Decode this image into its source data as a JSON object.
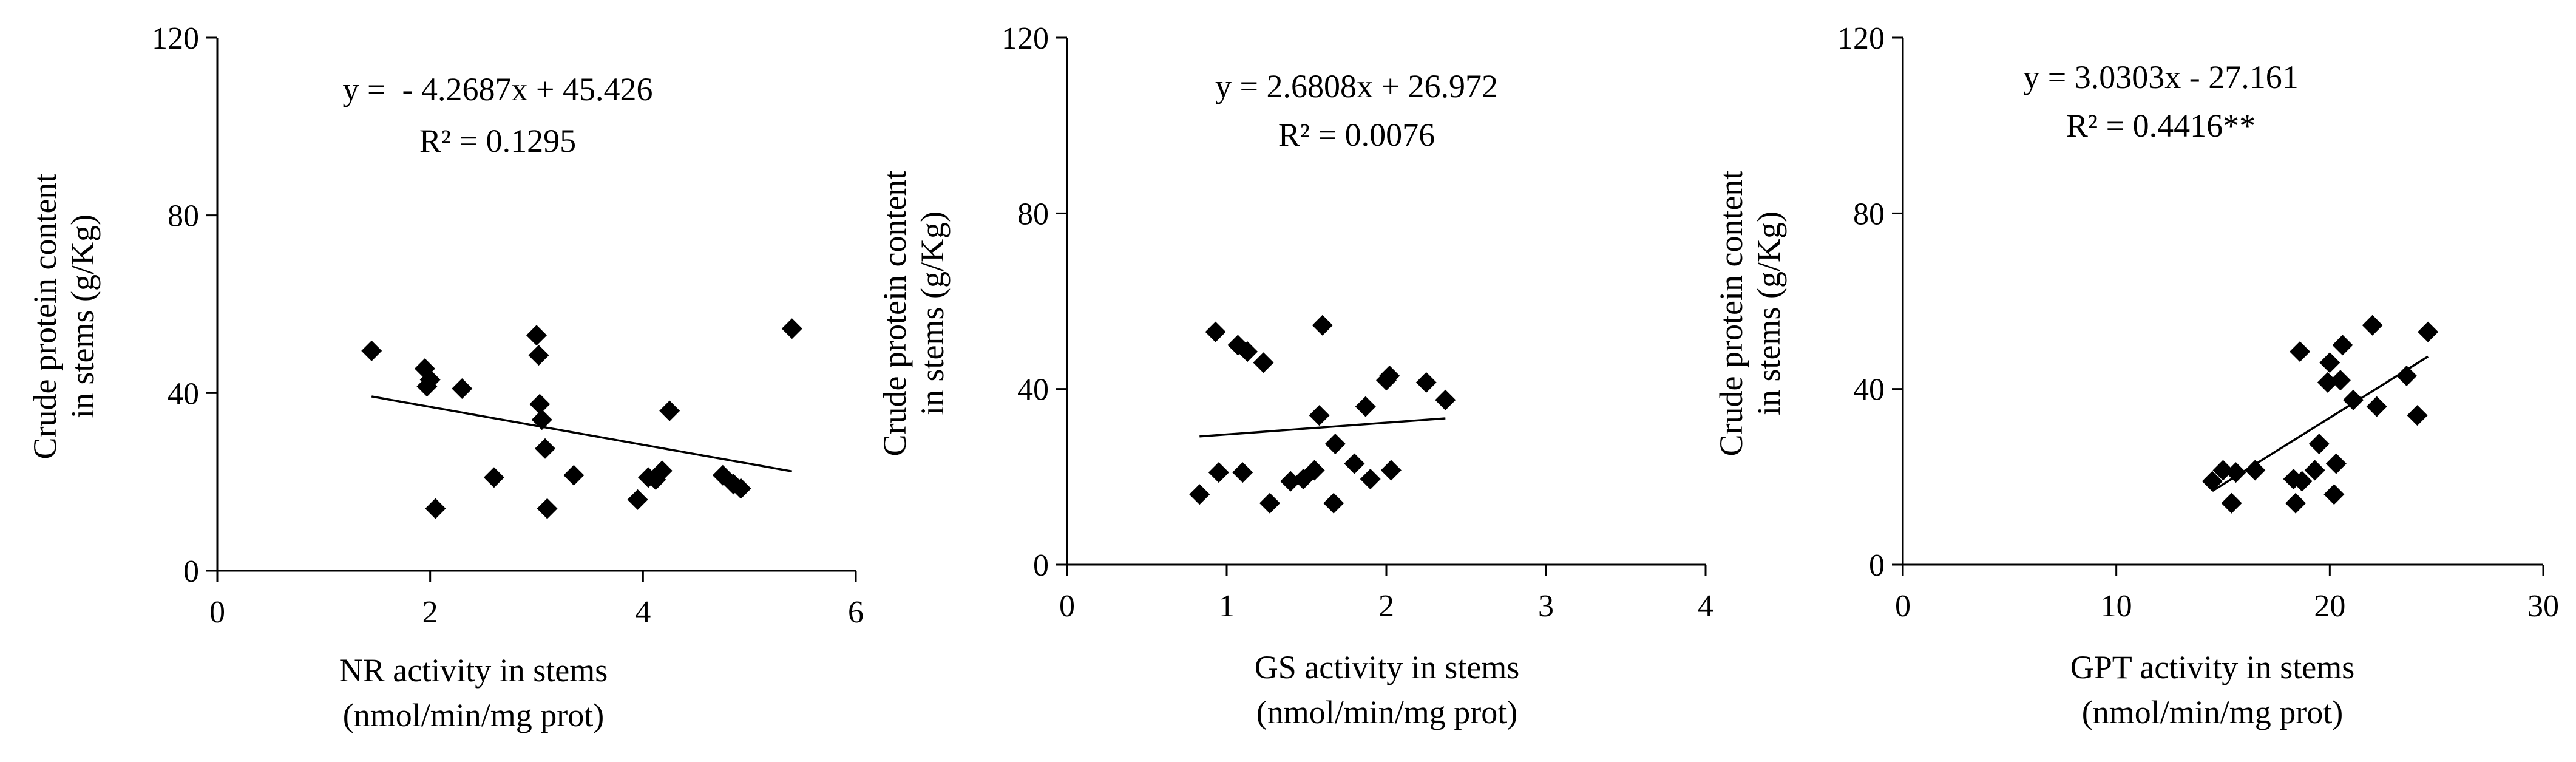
{
  "chart_data": [
    {
      "type": "scatter",
      "title": "",
      "xlabel": "NR activity  in stems",
      "xlabel_unit": "(nmol/min/mg  prot)",
      "ylabel": "Crude protein content",
      "ylabel2": "in stems (g/Kg)",
      "xlim": [
        0,
        6
      ],
      "ylim": [
        0,
        120
      ],
      "xticks": [
        "0",
        "2",
        "4",
        "6"
      ],
      "yticks": [
        "0",
        "40",
        "80",
        "120"
      ],
      "equation": "y =  - 4.2687x + 45.426",
      "r2": "R² = 0.1295",
      "trendline": {
        "slope": -4.2687,
        "intercept": 45.426,
        "x_range": [
          1.45,
          5.4
        ]
      },
      "points": [
        {
          "x": 1.45,
          "y": 49.5
        },
        {
          "x": 1.95,
          "y": 45.5
        },
        {
          "x": 1.97,
          "y": 41.5
        },
        {
          "x": 2.0,
          "y": 43.0
        },
        {
          "x": 2.05,
          "y": 14.0
        },
        {
          "x": 2.3,
          "y": 41.0
        },
        {
          "x": 2.6,
          "y": 21.0
        },
        {
          "x": 3.0,
          "y": 53.0
        },
        {
          "x": 3.02,
          "y": 48.5
        },
        {
          "x": 3.03,
          "y": 37.5
        },
        {
          "x": 3.05,
          "y": 34.0
        },
        {
          "x": 3.08,
          "y": 27.5
        },
        {
          "x": 3.1,
          "y": 14.0
        },
        {
          "x": 3.35,
          "y": 21.5
        },
        {
          "x": 3.95,
          "y": 16.0
        },
        {
          "x": 4.05,
          "y": 21.0
        },
        {
          "x": 4.12,
          "y": 20.5
        },
        {
          "x": 4.18,
          "y": 22.5
        },
        {
          "x": 4.25,
          "y": 36.0
        },
        {
          "x": 4.75,
          "y": 21.5
        },
        {
          "x": 4.85,
          "y": 19.5
        },
        {
          "x": 4.92,
          "y": 18.5
        },
        {
          "x": 5.4,
          "y": 54.5
        }
      ]
    },
    {
      "type": "scatter",
      "title": "",
      "xlabel": "GS activity in stems",
      "xlabel_unit": "(nmol/min/mg  prot)",
      "ylabel": "Crude protein content",
      "ylabel2": "in stems (g/Kg)",
      "xlim": [
        0,
        4
      ],
      "ylim": [
        0,
        120
      ],
      "xticks": [
        "0",
        "1",
        "2",
        "3",
        "4"
      ],
      "yticks": [
        "0",
        "40",
        "80",
        "120"
      ],
      "equation": "y = 2.6808x + 26.972",
      "r2": "R² = 0.0076",
      "trendline": {
        "slope": 2.6808,
        "intercept": 26.972,
        "x_range": [
          0.83,
          2.37
        ]
      },
      "points": [
        {
          "x": 0.83,
          "y": 16.0
        },
        {
          "x": 0.93,
          "y": 53.0
        },
        {
          "x": 0.95,
          "y": 21.0
        },
        {
          "x": 1.07,
          "y": 50.0
        },
        {
          "x": 1.1,
          "y": 21.0
        },
        {
          "x": 1.13,
          "y": 48.5
        },
        {
          "x": 1.23,
          "y": 46.0
        },
        {
          "x": 1.27,
          "y": 14.0
        },
        {
          "x": 1.4,
          "y": 19.0
        },
        {
          "x": 1.48,
          "y": 19.5
        },
        {
          "x": 1.55,
          "y": 21.5
        },
        {
          "x": 1.58,
          "y": 34.0
        },
        {
          "x": 1.6,
          "y": 54.5
        },
        {
          "x": 1.67,
          "y": 14.0
        },
        {
          "x": 1.68,
          "y": 27.5
        },
        {
          "x": 1.8,
          "y": 23.0
        },
        {
          "x": 1.87,
          "y": 36.0
        },
        {
          "x": 1.9,
          "y": 19.5
        },
        {
          "x": 2.0,
          "y": 42.0
        },
        {
          "x": 2.02,
          "y": 43.0
        },
        {
          "x": 2.03,
          "y": 21.5
        },
        {
          "x": 2.25,
          "y": 41.5
        },
        {
          "x": 2.37,
          "y": 37.5
        }
      ]
    },
    {
      "type": "scatter",
      "title": "",
      "xlabel": "GPT activity  in stems",
      "xlabel_unit": "(nmol/min/mg  prot)",
      "ylabel": "Crude protein content",
      "ylabel2": "in stems (g/Kg)",
      "xlim": [
        0,
        30
      ],
      "ylim": [
        0,
        120
      ],
      "xticks": [
        "0",
        "10",
        "20",
        "30"
      ],
      "yticks": [
        "0",
        "40",
        "80",
        "120"
      ],
      "equation": "y = 3.0303x - 27.161",
      "r2": "R² = 0.4416**",
      "trendline": {
        "slope": 3.0303,
        "intercept": -27.161,
        "x_range": [
          14.5,
          24.6
        ]
      },
      "points": [
        {
          "x": 14.5,
          "y": 19.0
        },
        {
          "x": 15.0,
          "y": 21.5
        },
        {
          "x": 15.4,
          "y": 14.0
        },
        {
          "x": 15.6,
          "y": 21.0
        },
        {
          "x": 16.5,
          "y": 21.5
        },
        {
          "x": 18.3,
          "y": 19.5
        },
        {
          "x": 18.4,
          "y": 14.0
        },
        {
          "x": 18.6,
          "y": 48.5
        },
        {
          "x": 18.7,
          "y": 19.0
        },
        {
          "x": 19.3,
          "y": 21.5
        },
        {
          "x": 19.5,
          "y": 27.5
        },
        {
          "x": 19.9,
          "y": 41.5
        },
        {
          "x": 20.0,
          "y": 46.0
        },
        {
          "x": 20.2,
          "y": 16.0
        },
        {
          "x": 20.3,
          "y": 23.0
        },
        {
          "x": 20.5,
          "y": 42.0
        },
        {
          "x": 20.6,
          "y": 50.0
        },
        {
          "x": 21.1,
          "y": 37.5
        },
        {
          "x": 22.0,
          "y": 54.5
        },
        {
          "x": 22.2,
          "y": 36.0
        },
        {
          "x": 23.6,
          "y": 43.0
        },
        {
          "x": 24.1,
          "y": 34.0
        },
        {
          "x": 24.6,
          "y": 53.0
        }
      ]
    }
  ]
}
